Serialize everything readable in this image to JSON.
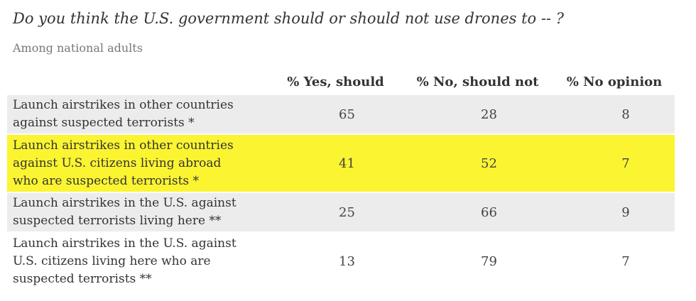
{
  "title": "Do you think the U.S. government should or should not use drones to -- ?",
  "subtitle": "Among national adults",
  "chart_data": {
    "type": "table",
    "columns": [
      "% Yes, should",
      "% No, should not",
      "% No opinion"
    ],
    "rows": [
      {
        "label_lines": [
          "Launch airstrikes in other countries",
          "against suspected terrorists *"
        ],
        "values": [
          65,
          28,
          8
        ]
      },
      {
        "label_lines": [
          "Launch airstrikes in other countries",
          "against U.S. citizens living abroad",
          "who are suspected terrorists *"
        ],
        "values": [
          41,
          52,
          7
        ]
      },
      {
        "label_lines": [
          "Launch airstrikes in the U.S. against",
          "suspected terrorists living here **"
        ],
        "values": [
          25,
          66,
          9
        ]
      },
      {
        "label_lines": [
          "Launch airstrikes in the U.S. against",
          "U.S. citizens living here who are",
          "suspected terrorists **"
        ],
        "values": [
          13,
          79,
          7
        ]
      }
    ]
  },
  "colors": {
    "row_grey": "#ececec",
    "row_highlight": "#fbf431",
    "row_white": "#ffffff"
  }
}
